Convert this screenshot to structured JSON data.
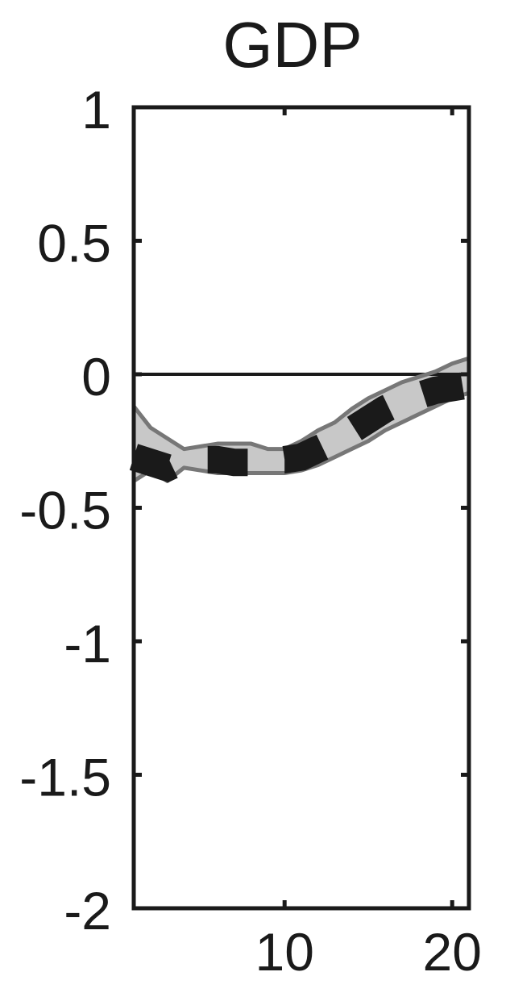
{
  "chart_data": {
    "type": "line",
    "title": "GDP",
    "xlabel": "",
    "ylabel": "",
    "xlim": [
      1,
      21
    ],
    "ylim": [
      -2,
      1
    ],
    "x_ticks": [
      10,
      20
    ],
    "x_tick_labels": [
      "10",
      "20"
    ],
    "y_ticks": [
      1,
      0.5,
      0,
      -0.5,
      -1,
      -1.5,
      -2
    ],
    "y_tick_labels": [
      "1",
      "0.5",
      "0",
      "-0.5",
      "-1",
      "-1.5",
      "-2"
    ],
    "zero_line": 0,
    "grid": false,
    "colors": {
      "median_line": "#1a1a1a",
      "band_fill": "#c8c8c8",
      "band_edge": "#777777",
      "axes": "#1a1a1a"
    },
    "series": [
      {
        "role": "median",
        "style": "dashed",
        "x": [
          1,
          2,
          3,
          4,
          5,
          6,
          7,
          8,
          9,
          10,
          11,
          12,
          13,
          14,
          15,
          16,
          17,
          18,
          19,
          20,
          21
        ],
        "values": [
          -0.31,
          -0.33,
          -0.35,
          -0.32,
          -0.32,
          -0.32,
          -0.33,
          -0.33,
          -0.32,
          -0.32,
          -0.31,
          -0.28,
          -0.25,
          -0.21,
          -0.17,
          -0.13,
          -0.1,
          -0.08,
          -0.06,
          -0.05,
          -0.04
        ]
      },
      {
        "role": "upper_band",
        "x": [
          1,
          2,
          3,
          4,
          5,
          6,
          7,
          8,
          9,
          10,
          11,
          12,
          13,
          14,
          15,
          16,
          17,
          18,
          19,
          20,
          21
        ],
        "values": [
          -0.12,
          -0.2,
          -0.24,
          -0.28,
          -0.27,
          -0.26,
          -0.26,
          -0.26,
          -0.28,
          -0.28,
          -0.25,
          -0.21,
          -0.18,
          -0.13,
          -0.09,
          -0.06,
          -0.03,
          -0.01,
          0.01,
          0.04,
          0.06
        ]
      },
      {
        "role": "lower_band",
        "x": [
          1,
          2,
          3,
          4,
          5,
          6,
          7,
          8,
          9,
          10,
          11,
          12,
          13,
          14,
          15,
          16,
          17,
          18,
          19,
          20,
          21
        ],
        "values": [
          -0.4,
          -0.36,
          -0.4,
          -0.35,
          -0.36,
          -0.37,
          -0.37,
          -0.37,
          -0.37,
          -0.37,
          -0.36,
          -0.34,
          -0.31,
          -0.28,
          -0.25,
          -0.21,
          -0.18,
          -0.15,
          -0.12,
          -0.09,
          -0.07
        ]
      }
    ]
  }
}
